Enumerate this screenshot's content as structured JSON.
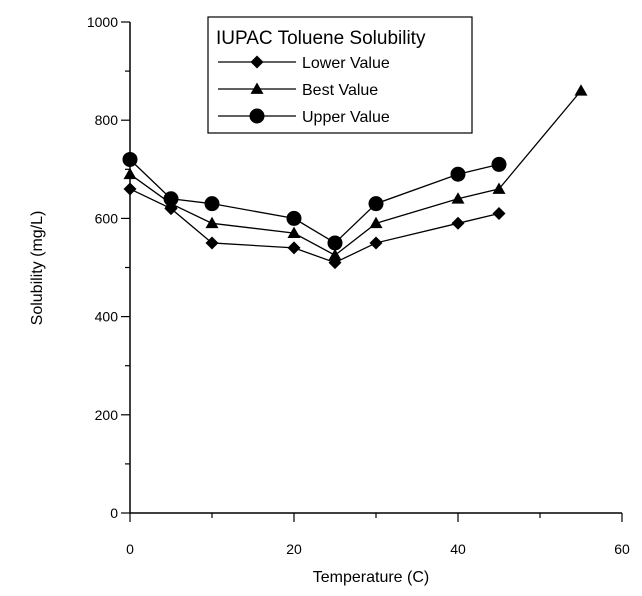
{
  "chart_data": {
    "type": "line",
    "title": "",
    "xlabel": "Temperature (C)",
    "ylabel": "Solubility (mg/L)",
    "xlim": [
      0,
      60
    ],
    "ylim": [
      0,
      1000
    ],
    "x_ticks": [
      0,
      20,
      40,
      60
    ],
    "y_ticks": [
      0,
      200,
      400,
      600,
      800,
      1000
    ],
    "grid": false,
    "legend": {
      "title": "IUPAC Toluene Solubility",
      "placement": "top-center"
    },
    "series": [
      {
        "name": "Lower Value",
        "marker": "diamond",
        "x": [
          0,
          5,
          10,
          20,
          25,
          30,
          40,
          45
        ],
        "values": [
          660,
          620,
          550,
          540,
          510,
          550,
          590,
          610
        ]
      },
      {
        "name": "Best Value",
        "marker": "triangle",
        "x": [
          0,
          5,
          10,
          20,
          25,
          30,
          40,
          45,
          55
        ],
        "values": [
          690,
          630,
          590,
          570,
          525,
          590,
          640,
          660,
          860
        ]
      },
      {
        "name": "Upper Value",
        "marker": "circle",
        "x": [
          0,
          5,
          10,
          20,
          25,
          30,
          40,
          45
        ],
        "values": [
          720,
          640,
          630,
          600,
          550,
          630,
          690,
          710
        ]
      }
    ]
  }
}
